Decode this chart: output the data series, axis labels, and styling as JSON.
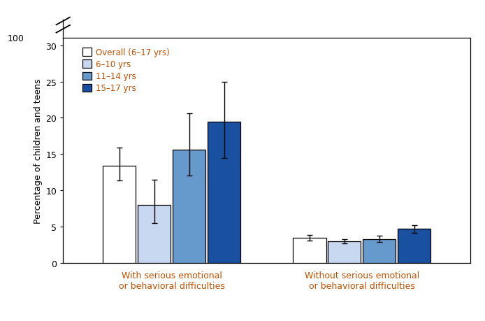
{
  "groups": [
    "With serious emotional\nor behavioral difficulties",
    "Without serious emotional\nor behavioral difficulties"
  ],
  "categories": [
    "Overall (6–17 yrs)",
    "6–10 yrs",
    "11–14 yrs",
    "15–17 yrs"
  ],
  "values": [
    [
      13.4,
      8.0,
      15.6,
      19.5
    ],
    [
      3.5,
      3.0,
      3.3,
      4.7
    ]
  ],
  "errors_low": [
    [
      2.0,
      2.5,
      3.5,
      5.0
    ],
    [
      0.4,
      0.3,
      0.4,
      0.5
    ]
  ],
  "errors_high": [
    [
      2.5,
      3.5,
      5.0,
      5.5
    ],
    [
      0.4,
      0.3,
      0.5,
      0.5
    ]
  ],
  "bar_colors": [
    "#ffffff",
    "#c8d8f0",
    "#6699cc",
    "#1a50a0"
  ],
  "bar_edge_colors": [
    "#000000",
    "#000000",
    "#000000",
    "#000000"
  ],
  "ylabel": "Percentage of children and teens",
  "yticks": [
    0,
    5,
    10,
    15,
    20,
    25,
    30
  ],
  "ylim": [
    0,
    31
  ],
  "bar_width": 0.09,
  "group_centers": [
    0.28,
    0.77
  ],
  "xlim": [
    0.0,
    1.05
  ],
  "background_color": "#ffffff",
  "legend_labels": [
    "Overall (6–17 yrs)",
    "6–10 yrs",
    "11–14 yrs",
    "15–17 yrs"
  ],
  "label_fontsize": 9,
  "tick_fontsize": 9,
  "legend_fontsize": 8.5
}
